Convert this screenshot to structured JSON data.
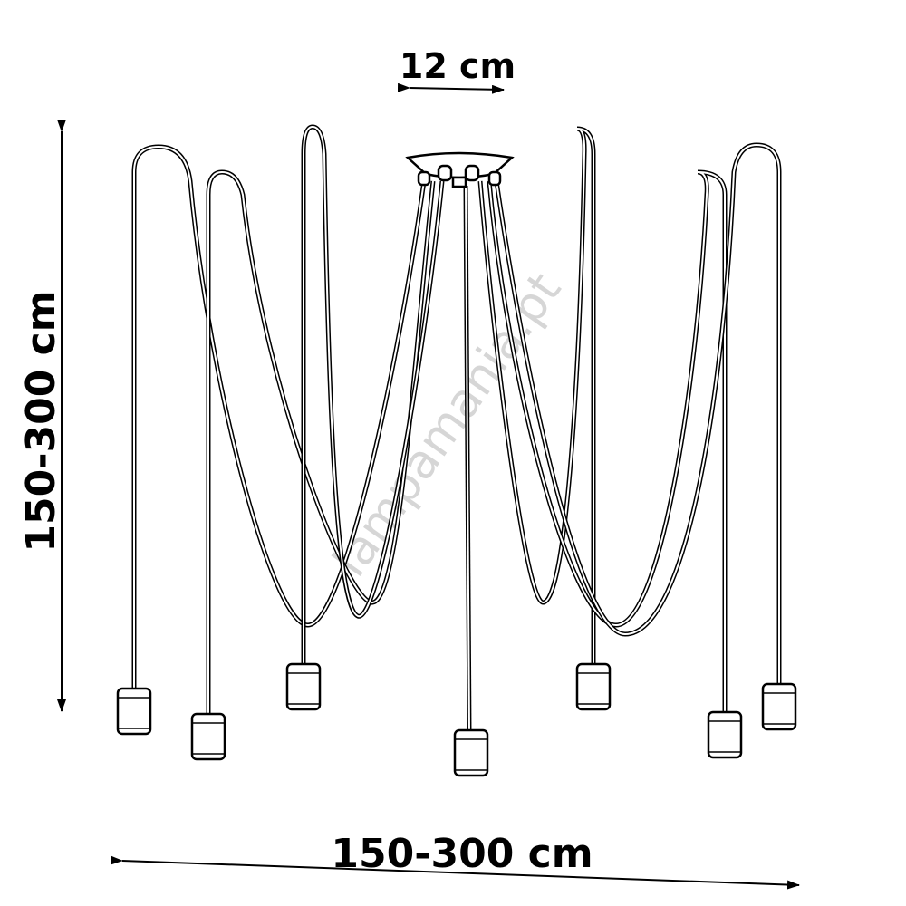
{
  "dimensions": {
    "canopy_width_label": "12 cm",
    "height_label": "150-300 cm",
    "width_label": "150-300 cm"
  },
  "watermark": "lampamania.pt",
  "pendant_count": 7,
  "colors": {
    "line": "#000000",
    "background": "#ffffff",
    "watermark": "#d6d6d6"
  }
}
